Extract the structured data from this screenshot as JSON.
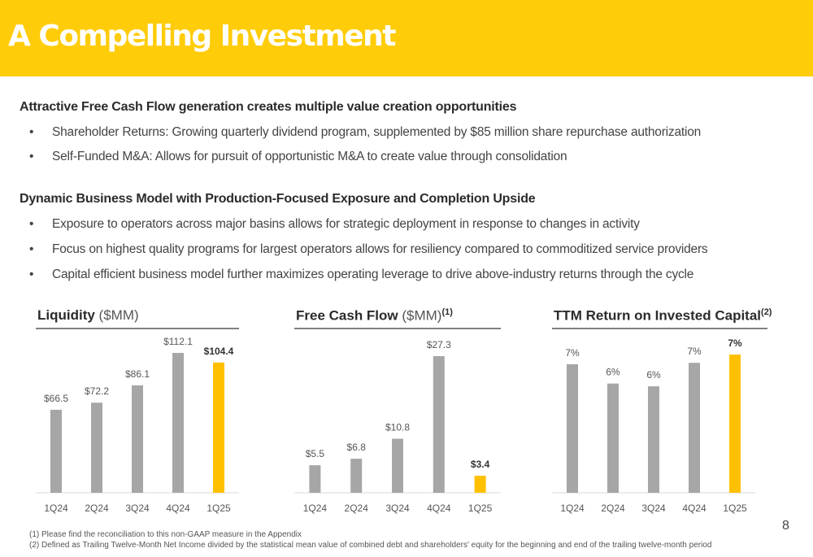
{
  "title": "A Compelling Investment",
  "section1": {
    "heading": "Attractive Free Cash Flow generation creates multiple value creation opportunities",
    "bullets": [
      "Shareholder Returns: Growing quarterly dividend program, supplemented by $85 million share repurchase authorization",
      "Self-Funded M&A: Allows for pursuit of opportunistic M&A to create value through consolidation"
    ]
  },
  "section2": {
    "heading": "Dynamic Business Model with Production-Focused Exposure and Completion Upside",
    "bullets": [
      "Exposure to operators across major basins allows for strategic deployment in response to changes in activity",
      "Focus on highest quality programs for largest operators allows for resiliency compared to commoditized service providers",
      "Capital efficient business model further maximizes operating leverage to drive above-industry returns through the cycle"
    ]
  },
  "charts_header": {
    "liquidity": {
      "bold": "Liquidity",
      "unit": " ($MM)",
      "sup": ""
    },
    "fcf": {
      "bold": "Free Cash Flow",
      "unit": " ($MM)",
      "sup": "(1)"
    },
    "roic": {
      "bold": "TTM Return on Invested Capital",
      "unit": "",
      "sup": "(2)"
    }
  },
  "colors": {
    "bar_gray": "#A6A6A6",
    "bar_highlight": "#FFC000",
    "brand_yellow": "#FFCC0A"
  },
  "chart_data": [
    {
      "type": "bar",
      "title": "Liquidity ($MM)",
      "categories": [
        "1Q24",
        "2Q24",
        "3Q24",
        "4Q24",
        "1Q25"
      ],
      "values": [
        66.5,
        72.2,
        86.1,
        112.1,
        104.4
      ],
      "labels": [
        "$66.5",
        "$72.2",
        "$86.1",
        "$112.1",
        "$104.4"
      ],
      "highlight_index": 4
    },
    {
      "type": "bar",
      "title": "Free Cash Flow ($MM)(1)",
      "categories": [
        "1Q24",
        "2Q24",
        "3Q24",
        "4Q24",
        "1Q25"
      ],
      "values": [
        5.5,
        6.8,
        10.8,
        27.3,
        3.4
      ],
      "labels": [
        "$5.5",
        "$6.8",
        "$10.8",
        "$27.3",
        "$3.4"
      ],
      "highlight_index": 4
    },
    {
      "type": "bar",
      "title": "TTM Return on Invested Capital(2)",
      "categories": [
        "1Q24",
        "2Q24",
        "3Q24",
        "4Q24",
        "1Q25"
      ],
      "values": [
        7,
        6,
        6,
        7,
        7
      ],
      "labels": [
        "7%",
        "6%",
        "6%",
        "7%",
        "7%"
      ],
      "highlight_index": 4
    }
  ],
  "footnotes": [
    "(1) Please find the reconciliation to this non-GAAP measure in the Appendix",
    "(2) Defined as Trailing Twelve-Month Net Income divided by the statistical mean value of combined debt and shareholders' equity for the beginning and end of the trailing twelve-month period"
  ],
  "page_number": "8"
}
